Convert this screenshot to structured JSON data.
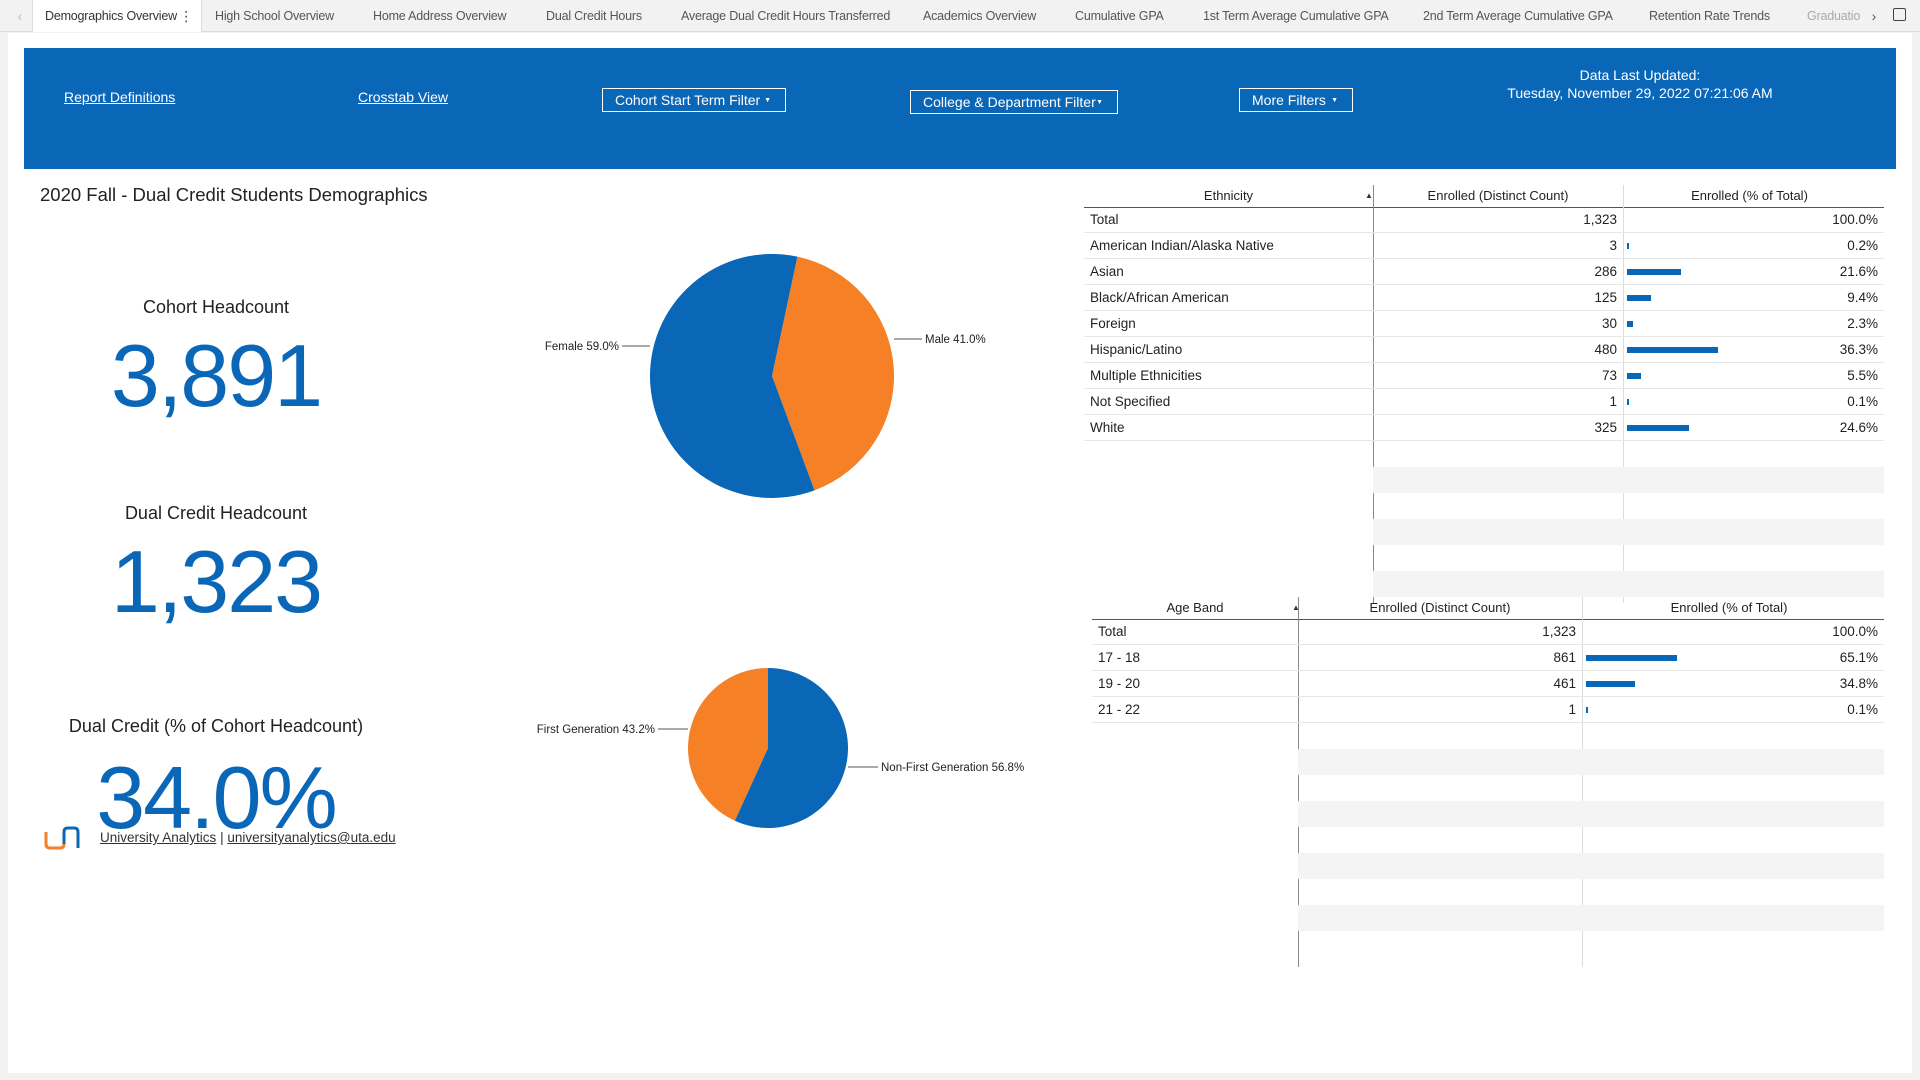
{
  "tabs": [
    {
      "label": "Demographics Overview",
      "active": true
    },
    {
      "label": "High School Overview"
    },
    {
      "label": "Home Address Overview"
    },
    {
      "label": "Dual Credit Hours"
    },
    {
      "label": "Average Dual Credit Hours Transferred"
    },
    {
      "label": "Academics Overview"
    },
    {
      "label": "Cumulative GPA"
    },
    {
      "label": "1st Term Average Cumulative GPA"
    },
    {
      "label": "2nd Term Average Cumulative GPA"
    },
    {
      "label": "Retention Rate Trends"
    },
    {
      "label": "Graduatio"
    }
  ],
  "header": {
    "report_definitions": "Report Definitions",
    "crosstab_view": "Crosstab View",
    "filters": [
      "Cohort Start Term Filter",
      "College & Department Filter",
      "More Filters"
    ],
    "updated_label": "Data Last Updated:",
    "updated_value": "Tuesday, November 29, 2022 07:21:06 AM"
  },
  "report_title": "2020 Fall - Dual Credit Students Demographics",
  "kpis": [
    {
      "label": "Cohort Headcount",
      "value": "3,891"
    },
    {
      "label": "Dual Credit Headcount",
      "value": "1,323"
    },
    {
      "label": "Dual Credit (% of Cohort Headcount)",
      "value": "34.0%"
    }
  ],
  "colors": {
    "blue": "#0a66b7",
    "orange": "#f58025"
  },
  "chart_data": [
    {
      "type": "pie",
      "slices": [
        {
          "label": "Male 41.0%",
          "value": 41.0,
          "color": "#f58025"
        },
        {
          "label": "Female 59.0%",
          "value": 59.0,
          "color": "#0a66b7"
        }
      ]
    },
    {
      "type": "pie",
      "slices": [
        {
          "label": "Non-First Generation 56.8%",
          "value": 56.8,
          "color": "#0a66b7"
        },
        {
          "label": "First Generation 43.2%",
          "value": 43.2,
          "color": "#f58025"
        }
      ]
    }
  ],
  "ethnicity_table": {
    "headers": [
      "Ethnicity",
      "Enrolled (Distinct Count)",
      "Enrolled (% of Total)"
    ],
    "rows": [
      {
        "label": "Total",
        "count": "1,323",
        "pct": "100.0%",
        "share": null
      },
      {
        "label": "American Indian/Alaska Native",
        "count": "3",
        "pct": "0.2%",
        "share": 0.2
      },
      {
        "label": "Asian",
        "count": "286",
        "pct": "21.6%",
        "share": 21.6
      },
      {
        "label": "Black/African American",
        "count": "125",
        "pct": "9.4%",
        "share": 9.4
      },
      {
        "label": "Foreign",
        "count": "30",
        "pct": "2.3%",
        "share": 2.3
      },
      {
        "label": "Hispanic/Latino",
        "count": "480",
        "pct": "36.3%",
        "share": 36.3
      },
      {
        "label": "Multiple Ethnicities",
        "count": "73",
        "pct": "5.5%",
        "share": 5.5
      },
      {
        "label": "Not Specified",
        "count": "1",
        "pct": "0.1%",
        "share": 0.1
      },
      {
        "label": "White",
        "count": "325",
        "pct": "24.6%",
        "share": 24.6
      }
    ]
  },
  "age_table": {
    "headers": [
      "Age Band",
      "Enrolled (Distinct Count)",
      "Enrolled (% of Total)"
    ],
    "rows": [
      {
        "label": "Total",
        "count": "1,323",
        "pct": "100.0%",
        "share": null
      },
      {
        "label": "17 - 18",
        "count": "861",
        "pct": "65.1%",
        "share": 65.1
      },
      {
        "label": "19 - 20",
        "count": "461",
        "pct": "34.8%",
        "share": 34.8
      },
      {
        "label": "21 - 22",
        "count": "1",
        "pct": "0.1%",
        "share": 0.1
      }
    ]
  },
  "footer": {
    "org": "University Analytics",
    "separator": "|",
    "email": "universityanalytics@uta.edu"
  }
}
